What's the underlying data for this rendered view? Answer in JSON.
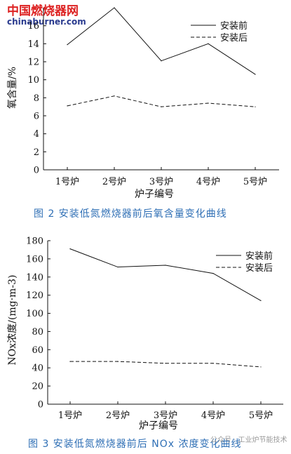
{
  "watermark": {
    "logo": "中国燃烧器网",
    "url": "chinaburner.com"
  },
  "wechat_mark": "公众号 · 工业炉节能技术",
  "chart_data": [
    {
      "type": "line",
      "categories": [
        "1号炉",
        "2号炉",
        "3号炉",
        "4号炉",
        "5号炉"
      ],
      "series": [
        {
          "name": "安装前",
          "style": "solid",
          "values": [
            13.9,
            18.0,
            12.1,
            14.0,
            10.6
          ]
        },
        {
          "name": "安装后",
          "style": "dashed",
          "values": [
            7.1,
            8.2,
            7.0,
            7.4,
            7.0
          ]
        }
      ],
      "ylim": [
        0,
        18
      ],
      "yticks": [
        0,
        2,
        4,
        6,
        8,
        10,
        12,
        14,
        16
      ],
      "ylabel": "氧含量/%",
      "xlabel": "炉子编号",
      "caption": "图 2    安装低氮燃烧器前后氧含量变化曲线",
      "legend": "top-right",
      "grid": false,
      "color": "#111111"
    },
    {
      "type": "line",
      "categories": [
        "1号炉",
        "2号炉",
        "3号炉",
        "4号炉",
        "5号炉"
      ],
      "series": [
        {
          "name": "安装前",
          "style": "solid",
          "values": [
            171,
            151,
            153,
            144,
            114
          ]
        },
        {
          "name": "安装后",
          "style": "dashed",
          "values": [
            47,
            47,
            45,
            45,
            41
          ]
        }
      ],
      "ylim": [
        0,
        180
      ],
      "yticks": [
        0,
        20,
        40,
        60,
        80,
        100,
        120,
        140,
        160,
        180
      ],
      "ylabel": "NOx浓度/(mg·m-3)",
      "xlabel": "炉子编号",
      "caption": "图 3    安装低氮燃烧器前后 NOx 浓度变化曲线",
      "legend": "top-right",
      "grid": false,
      "color": "#111111"
    }
  ]
}
